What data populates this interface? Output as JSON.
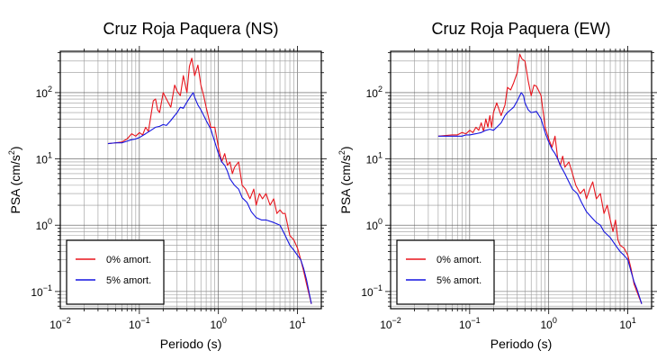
{
  "chart_data": [
    {
      "type": "line",
      "title": "Cruz Roja Paquera (NS)",
      "xlabel": "Periodo (s)",
      "ylabel_main": "PSA (cm/s",
      "ylabel_sup": "2",
      "ylabel_end": ")",
      "xscale": "log",
      "yscale": "log",
      "xlim": [
        0.01,
        20
      ],
      "ylim": [
        0.055,
        420
      ],
      "grid": true,
      "legend_position": "bottom-left",
      "x_ticks": [
        {
          "value": 0.01,
          "base": "10",
          "exp": "−2"
        },
        {
          "value": 0.1,
          "base": "10",
          "exp": "−1"
        },
        {
          "value": 1,
          "base": "10",
          "exp": "0"
        },
        {
          "value": 10,
          "base": "10",
          "exp": "1"
        }
      ],
      "y_ticks": [
        {
          "value": 0.1,
          "base": "10",
          "exp": "−1"
        },
        {
          "value": 1,
          "base": "10",
          "exp": "0"
        },
        {
          "value": 10,
          "base": "10",
          "exp": "1"
        },
        {
          "value": 100,
          "base": "10",
          "exp": "2"
        }
      ],
      "series": [
        {
          "name": "0% amort.",
          "color": "#e8141c",
          "points": [
            [
              0.04,
              17
            ],
            [
              0.05,
              17.5
            ],
            [
              0.06,
              18
            ],
            [
              0.07,
              20
            ],
            [
              0.08,
              24
            ],
            [
              0.09,
              22
            ],
            [
              0.1,
              25
            ],
            [
              0.11,
              23
            ],
            [
              0.12,
              30
            ],
            [
              0.13,
              26
            ],
            [
              0.14,
              45
            ],
            [
              0.15,
              75
            ],
            [
              0.16,
              80
            ],
            [
              0.17,
              55
            ],
            [
              0.18,
              50
            ],
            [
              0.19,
              70
            ],
            [
              0.2,
              100
            ],
            [
              0.22,
              80
            ],
            [
              0.25,
              60
            ],
            [
              0.28,
              130
            ],
            [
              0.3,
              105
            ],
            [
              0.33,
              90
            ],
            [
              0.36,
              180
            ],
            [
              0.4,
              100
            ],
            [
              0.43,
              250
            ],
            [
              0.46,
              330
            ],
            [
              0.5,
              180
            ],
            [
              0.55,
              260
            ],
            [
              0.6,
              130
            ],
            [
              0.65,
              90
            ],
            [
              0.7,
              60
            ],
            [
              0.8,
              30
            ],
            [
              0.9,
              30
            ],
            [
              1.0,
              15
            ],
            [
              1.1,
              9
            ],
            [
              1.2,
              12
            ],
            [
              1.3,
              8
            ],
            [
              1.4,
              9
            ],
            [
              1.5,
              6
            ],
            [
              1.6,
              7.5
            ],
            [
              1.8,
              9
            ],
            [
              2.0,
              4
            ],
            [
              2.2,
              3.5
            ],
            [
              2.5,
              2.5
            ],
            [
              2.8,
              3.5
            ],
            [
              3.0,
              2
            ],
            [
              3.3,
              3
            ],
            [
              3.6,
              2.5
            ],
            [
              4.0,
              3
            ],
            [
              4.5,
              2
            ],
            [
              5.0,
              2.5
            ],
            [
              5.5,
              1.5
            ],
            [
              6.0,
              1.7
            ],
            [
              6.5,
              1.5
            ],
            [
              7.0,
              1.5
            ],
            [
              8.0,
              0.7
            ],
            [
              9.0,
              0.6
            ],
            [
              10,
              0.45
            ],
            [
              11,
              0.3
            ],
            [
              12,
              0.2
            ],
            [
              13,
              0.13
            ],
            [
              15,
              0.065
            ]
          ]
        },
        {
          "name": "5% amort.",
          "color": "#1414e0",
          "points": [
            [
              0.04,
              17
            ],
            [
              0.05,
              17.5
            ],
            [
              0.06,
              17.5
            ],
            [
              0.07,
              18.5
            ],
            [
              0.08,
              19.5
            ],
            [
              0.09,
              20
            ],
            [
              0.1,
              21
            ],
            [
              0.12,
              24
            ],
            [
              0.14,
              27
            ],
            [
              0.16,
              30
            ],
            [
              0.18,
              31
            ],
            [
              0.2,
              33
            ],
            [
              0.22,
              32
            ],
            [
              0.25,
              38
            ],
            [
              0.28,
              45
            ],
            [
              0.3,
              50
            ],
            [
              0.33,
              60
            ],
            [
              0.36,
              58
            ],
            [
              0.4,
              72
            ],
            [
              0.45,
              90
            ],
            [
              0.48,
              100
            ],
            [
              0.5,
              85
            ],
            [
              0.55,
              65
            ],
            [
              0.6,
              55
            ],
            [
              0.7,
              38
            ],
            [
              0.8,
              28
            ],
            [
              0.9,
              18
            ],
            [
              1.0,
              12
            ],
            [
              1.1,
              9
            ],
            [
              1.2,
              8
            ],
            [
              1.3,
              6.5
            ],
            [
              1.4,
              5
            ],
            [
              1.6,
              4
            ],
            [
              1.8,
              3.5
            ],
            [
              2.0,
              2.6
            ],
            [
              2.3,
              2.2
            ],
            [
              2.6,
              1.6
            ],
            [
              3.0,
              1.3
            ],
            [
              3.5,
              1.2
            ],
            [
              4.0,
              1.2
            ],
            [
              5.0,
              1.1
            ],
            [
              6.0,
              1.0
            ],
            [
              7.0,
              0.7
            ],
            [
              8.0,
              0.5
            ],
            [
              9.0,
              0.42
            ],
            [
              10,
              0.35
            ],
            [
              11,
              0.3
            ],
            [
              12,
              0.22
            ],
            [
              13,
              0.15
            ],
            [
              15,
              0.065
            ]
          ]
        }
      ]
    },
    {
      "type": "line",
      "title": "Cruz Roja Paquera (EW)",
      "xlabel": "Periodo (s)",
      "ylabel_main": "PSA (cm/s",
      "ylabel_sup": "2",
      "ylabel_end": ")",
      "xscale": "log",
      "yscale": "log",
      "xlim": [
        0.01,
        20
      ],
      "ylim": [
        0.055,
        420
      ],
      "grid": true,
      "legend_position": "bottom-left",
      "x_ticks": [
        {
          "value": 0.01,
          "base": "10",
          "exp": "−2"
        },
        {
          "value": 0.1,
          "base": "10",
          "exp": "−1"
        },
        {
          "value": 1,
          "base": "10",
          "exp": "0"
        },
        {
          "value": 10,
          "base": "10",
          "exp": "1"
        }
      ],
      "y_ticks": [
        {
          "value": 0.1,
          "base": "10",
          "exp": "−1"
        },
        {
          "value": 1,
          "base": "10",
          "exp": "0"
        },
        {
          "value": 10,
          "base": "10",
          "exp": "1"
        },
        {
          "value": 100,
          "base": "10",
          "exp": "2"
        }
      ],
      "series": [
        {
          "name": "0% amort.",
          "color": "#e8141c",
          "points": [
            [
              0.04,
              22
            ],
            [
              0.05,
              22.5
            ],
            [
              0.06,
              23
            ],
            [
              0.07,
              23
            ],
            [
              0.08,
              25
            ],
            [
              0.09,
              24
            ],
            [
              0.1,
              27
            ],
            [
              0.11,
              25
            ],
            [
              0.12,
              30
            ],
            [
              0.13,
              27
            ],
            [
              0.14,
              35
            ],
            [
              0.15,
              26
            ],
            [
              0.16,
              40
            ],
            [
              0.17,
              30
            ],
            [
              0.18,
              45
            ],
            [
              0.19,
              30
            ],
            [
              0.2,
              50
            ],
            [
              0.22,
              70
            ],
            [
              0.25,
              45
            ],
            [
              0.28,
              65
            ],
            [
              0.3,
              120
            ],
            [
              0.33,
              110
            ],
            [
              0.36,
              140
            ],
            [
              0.4,
              200
            ],
            [
              0.43,
              380
            ],
            [
              0.46,
              320
            ],
            [
              0.5,
              300
            ],
            [
              0.55,
              150
            ],
            [
              0.6,
              90
            ],
            [
              0.65,
              130
            ],
            [
              0.7,
              125
            ],
            [
              0.8,
              90
            ],
            [
              0.9,
              30
            ],
            [
              1.0,
              20
            ],
            [
              1.1,
              15
            ],
            [
              1.2,
              22
            ],
            [
              1.3,
              10
            ],
            [
              1.4,
              8
            ],
            [
              1.5,
              11
            ],
            [
              1.6,
              7.5
            ],
            [
              1.8,
              9
            ],
            [
              2.0,
              6
            ],
            [
              2.2,
              4
            ],
            [
              2.5,
              3
            ],
            [
              2.8,
              3.5
            ],
            [
              3.0,
              2.5
            ],
            [
              3.3,
              3.5
            ],
            [
              3.6,
              4.5
            ],
            [
              4.0,
              2.5
            ],
            [
              4.5,
              3
            ],
            [
              5.0,
              1.5
            ],
            [
              5.5,
              2
            ],
            [
              6.0,
              1.2
            ],
            [
              6.5,
              0.8
            ],
            [
              7.0,
              1.2
            ],
            [
              7.5,
              0.6
            ],
            [
              8.0,
              0.5
            ],
            [
              9.0,
              0.45
            ],
            [
              10,
              0.35
            ],
            [
              11,
              0.22
            ],
            [
              12,
              0.13
            ],
            [
              13,
              0.1
            ],
            [
              15,
              0.065
            ]
          ]
        },
        {
          "name": "5% amort.",
          "color": "#1414e0",
          "points": [
            [
              0.04,
              22
            ],
            [
              0.05,
              22
            ],
            [
              0.06,
              22
            ],
            [
              0.07,
              22
            ],
            [
              0.08,
              22
            ],
            [
              0.09,
              23
            ],
            [
              0.1,
              23
            ],
            [
              0.12,
              24
            ],
            [
              0.14,
              25
            ],
            [
              0.16,
              27
            ],
            [
              0.18,
              28
            ],
            [
              0.2,
              27
            ],
            [
              0.22,
              30
            ],
            [
              0.25,
              35
            ],
            [
              0.28,
              45
            ],
            [
              0.3,
              50
            ],
            [
              0.33,
              55
            ],
            [
              0.36,
              60
            ],
            [
              0.4,
              75
            ],
            [
              0.45,
              100
            ],
            [
              0.48,
              90
            ],
            [
              0.5,
              70
            ],
            [
              0.55,
              55
            ],
            [
              0.6,
              50
            ],
            [
              0.7,
              52
            ],
            [
              0.8,
              40
            ],
            [
              0.9,
              25
            ],
            [
              1.0,
              18
            ],
            [
              1.1,
              14
            ],
            [
              1.2,
              12
            ],
            [
              1.3,
              10
            ],
            [
              1.4,
              8
            ],
            [
              1.6,
              6
            ],
            [
              1.8,
              4.5
            ],
            [
              2.0,
              3.5
            ],
            [
              2.3,
              3
            ],
            [
              2.6,
              2.2
            ],
            [
              3.0,
              1.6
            ],
            [
              3.5,
              1.3
            ],
            [
              4.0,
              1.1
            ],
            [
              4.5,
              1.0
            ],
            [
              5.0,
              0.8
            ],
            [
              6.0,
              0.65
            ],
            [
              7.0,
              0.5
            ],
            [
              8.0,
              0.4
            ],
            [
              9.0,
              0.35
            ],
            [
              10,
              0.3
            ],
            [
              11,
              0.2
            ],
            [
              12,
              0.14
            ],
            [
              13,
              0.11
            ],
            [
              15,
              0.065
            ]
          ]
        }
      ]
    }
  ]
}
